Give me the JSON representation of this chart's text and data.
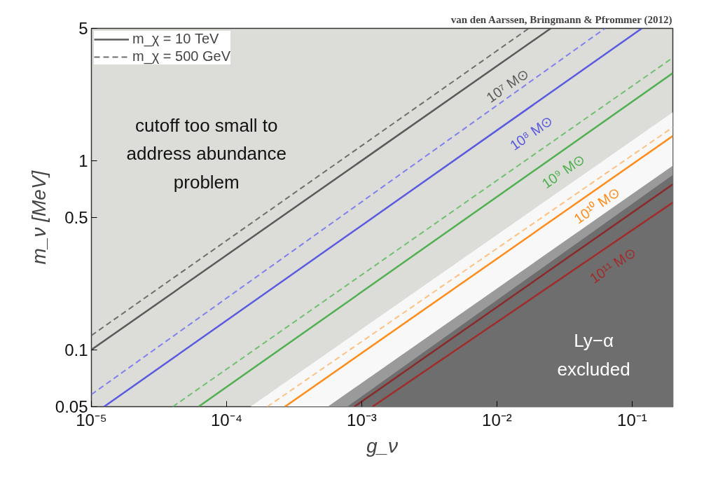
{
  "chart_data": {
    "type": "line",
    "xlabel": "g_ν",
    "ylabel": "m_ν [MeV]",
    "log": "xy",
    "xlim": [
      1e-05,
      0.2
    ],
    "ylim": [
      0.05,
      5
    ],
    "xticks": [
      {
        "value": 1e-05,
        "label": "10⁻⁵"
      },
      {
        "value": 0.0001,
        "label": "10⁻⁴"
      },
      {
        "value": 0.001,
        "label": "10⁻³"
      },
      {
        "value": 0.01,
        "label": "10⁻²"
      },
      {
        "value": 0.1,
        "label": "10⁻¹"
      }
    ],
    "yticks": [
      0.05,
      0.1,
      0.5,
      1,
      5
    ],
    "legend": "top left",
    "series": [
      {
        "type": "area",
        "color": "#f8f8f8",
        "x": [
          0.00015,
          0.2
        ],
        "values": [
          0.05,
          1.8
        ]
      },
      {
        "type": "area",
        "color": "#9a9a9a",
        "x": [
          0.00056,
          0.2
        ],
        "values": [
          0.05,
          0.94
        ]
      },
      {
        "type": "area",
        "color": "#6e6e6e",
        "x": [
          0.00078,
          0.2
        ],
        "values": [
          0.05,
          0.84
        ]
      },
      {
        "name": "m_χ = 10 TeV",
        "color": "#5a5a5a",
        "line_style": "solid",
        "x": [
          1e-05,
          0.025
        ],
        "values": [
          0.1,
          5
        ]
      },
      {
        "name": "m_χ = 500 GeV",
        "color": "#6e6e6e",
        "line_style": "dashed",
        "x": [
          1e-05,
          0.0172
        ],
        "values": [
          0.119,
          5
        ]
      },
      {
        "color": "#8080ee",
        "line_style": "dashed",
        "x": [
          1e-05,
          0.063
        ],
        "values": [
          0.058,
          5
        ]
      },
      {
        "color": "#5a5ae0",
        "line_style": "solid",
        "x": [
          1.24e-05,
          0.118
        ],
        "values": [
          0.05,
          5
        ]
      },
      {
        "color": "#70c070",
        "line_style": "dashed",
        "x": [
          4e-05,
          0.2
        ],
        "values": [
          0.05,
          3.5
        ]
      },
      {
        "color": "#50b050",
        "line_style": "solid",
        "x": [
          6.2e-05,
          0.2
        ],
        "values": [
          0.05,
          2.9
        ]
      },
      {
        "color": "#ffc080",
        "line_style": "dashed",
        "x": [
          0.0002,
          0.2
        ],
        "values": [
          0.05,
          1.5
        ]
      },
      {
        "color": "#ff8c1a",
        "line_style": "solid",
        "x": [
          0.00027,
          0.2
        ],
        "values": [
          0.05,
          1.35
        ]
      },
      {
        "color": "#8b2a2a",
        "line_style": "solid",
        "x": [
          0.00088,
          0.2
        ],
        "values": [
          0.05,
          0.75
        ]
      },
      {
        "color": "#a02c2c",
        "line_style": "solid",
        "x": [
          0.0012,
          0.2
        ],
        "values": [
          0.05,
          0.6
        ]
      }
    ],
    "annotations": [
      "van den Aarssen, Bringmann & Pfrommer (2012)",
      "cutoff too small to\naddress abundance\nproblem",
      "Ly−α\nexcluded",
      "10⁷ M⊙",
      "10⁸ M⊙",
      "10⁹ M⊙",
      "10¹⁰ M⊙",
      "10¹¹ M⊙"
    ]
  }
}
